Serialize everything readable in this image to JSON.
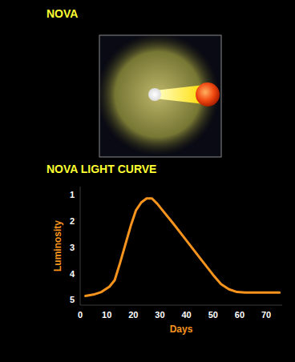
{
  "diagram": {
    "title": "NOVA"
  },
  "chart_data": {
    "type": "line",
    "title": "NOVA LIGHT CURVE",
    "x_label": "Days",
    "y_label": "Luminosity",
    "x": [
      2,
      5,
      8,
      11,
      13,
      15,
      17,
      19,
      21,
      23,
      25,
      27,
      29,
      31,
      35,
      40,
      45,
      50,
      53,
      56,
      59,
      62,
      70,
      75
    ],
    "values": [
      4.85,
      4.8,
      4.7,
      4.5,
      4.25,
      3.6,
      2.9,
      2.2,
      1.6,
      1.3,
      1.15,
      1.15,
      1.35,
      1.6,
      2.1,
      2.75,
      3.4,
      4.05,
      4.4,
      4.6,
      4.7,
      4.72,
      4.72,
      4.72
    ],
    "color": "#f7941d",
    "xlim": [
      0,
      76
    ],
    "xticks": [
      0,
      10,
      20,
      30,
      40,
      50,
      60,
      70
    ],
    "ylim": [
      5.2,
      0.7
    ],
    "yticks": [
      1,
      2,
      3,
      4,
      5
    ],
    "grid": false
  }
}
